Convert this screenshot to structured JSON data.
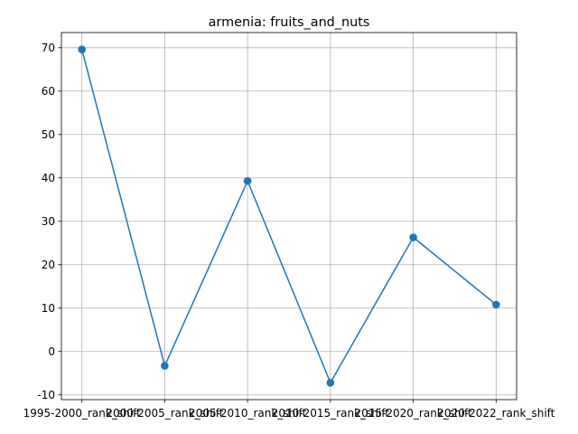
{
  "chart_data": {
    "type": "line",
    "title": "armenia: fruits_and_nuts",
    "xlabel": "",
    "ylabel": "",
    "categories": [
      "1995-2000_rank_shift",
      "2000-2005_rank_shift",
      "2005-2010_rank_shift",
      "2010-2015_rank_shift",
      "2015-2020_rank_shift",
      "2020-2022_rank_shift"
    ],
    "series": [
      {
        "values": [
          69.6,
          -3.3,
          39.3,
          -7.2,
          26.3,
          10.8
        ],
        "color": "#1f77b4"
      }
    ],
    "ylim": [
      -11.1,
      73.5
    ],
    "yticks": [
      -10,
      0,
      10,
      20,
      30,
      40,
      50,
      60,
      70
    ],
    "grid": true,
    "legend": "none"
  }
}
